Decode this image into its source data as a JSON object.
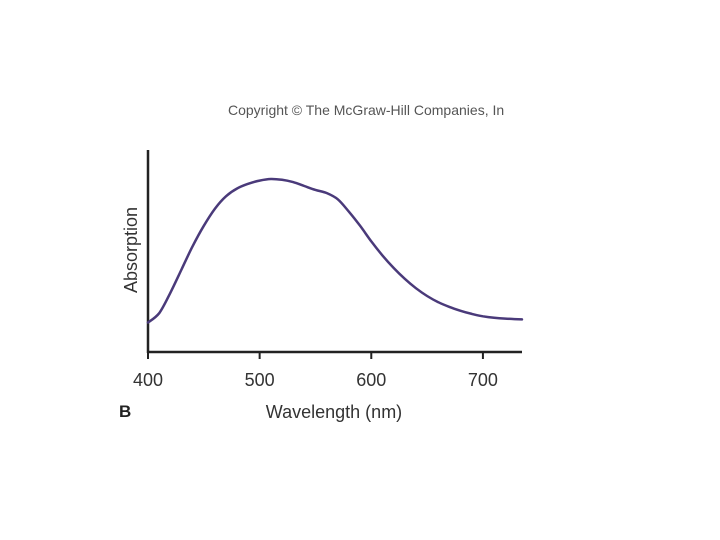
{
  "copyright": "Copyright © The McGraw-Hill Companies, In",
  "panel_label": "B",
  "chart_data": {
    "type": "line",
    "title": "",
    "xlabel": "Wavelength (nm)",
    "ylabel": "Absorption",
    "xlim": [
      400,
      735
    ],
    "ylim": [
      0,
      1
    ],
    "x_ticks": [
      400,
      500,
      600,
      700
    ],
    "y_ticks": [],
    "grid": false,
    "color": "#4a3a7a",
    "series": [
      {
        "x": [
          400,
          410,
          420,
          430,
          440,
          450,
          460,
          470,
          480,
          490,
          500,
          510,
          520,
          530,
          540,
          550,
          560,
          570,
          580,
          590,
          600,
          610,
          620,
          630,
          640,
          650,
          660,
          670,
          680,
          690,
          700,
          710,
          720,
          735
        ],
        "y": [
          0.08,
          0.14,
          0.27,
          0.42,
          0.57,
          0.7,
          0.81,
          0.89,
          0.94,
          0.97,
          0.99,
          1.0,
          0.995,
          0.98,
          0.955,
          0.93,
          0.91,
          0.87,
          0.79,
          0.7,
          0.6,
          0.51,
          0.43,
          0.36,
          0.3,
          0.25,
          0.21,
          0.18,
          0.155,
          0.135,
          0.12,
          0.11,
          0.105,
          0.1
        ]
      }
    ]
  }
}
